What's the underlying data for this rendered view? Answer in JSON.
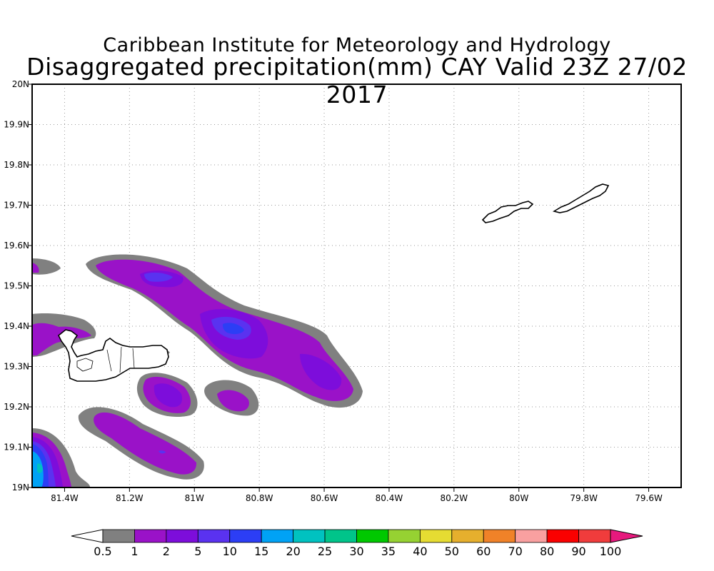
{
  "header": {
    "institute": "Caribbean Institute for Meteorology and Hydrology",
    "product": "Disaggregated precipitation(mm) CAY Valid 23Z 27/02 2017"
  },
  "map": {
    "lon_range": [
      -81.5,
      -79.5
    ],
    "lat_range": [
      19.0,
      20.0
    ],
    "lon_ticks": [
      {
        "value": -81.4,
        "label": "81.4W"
      },
      {
        "value": -81.2,
        "label": "81.2W"
      },
      {
        "value": -81.0,
        "label": "81W"
      },
      {
        "value": -80.8,
        "label": "80.8W"
      },
      {
        "value": -80.6,
        "label": "80.6W"
      },
      {
        "value": -80.4,
        "label": "80.4W"
      },
      {
        "value": -80.2,
        "label": "80.2W"
      },
      {
        "value": -80.0,
        "label": "80W"
      },
      {
        "value": -79.8,
        "label": "79.8W"
      },
      {
        "value": -79.6,
        "label": "79.6W"
      }
    ],
    "lat_ticks": [
      {
        "value": 19.0,
        "label": "19N"
      },
      {
        "value": 19.1,
        "label": "19.1N"
      },
      {
        "value": 19.2,
        "label": "19.2N"
      },
      {
        "value": 19.3,
        "label": "19.3N"
      },
      {
        "value": 19.4,
        "label": "19.4N"
      },
      {
        "value": 19.5,
        "label": "19.5N"
      },
      {
        "value": 19.6,
        "label": "19.6N"
      },
      {
        "value": 19.7,
        "label": "19.7N"
      },
      {
        "value": 19.8,
        "label": "19.8N"
      },
      {
        "value": 19.9,
        "label": "19.9N"
      },
      {
        "value": 20.0,
        "label": "20N"
      }
    ],
    "gridlines": true
  },
  "colorbar": {
    "labels": [
      "0.5",
      "1",
      "2",
      "5",
      "10",
      "15",
      "20",
      "25",
      "30",
      "35",
      "40",
      "50",
      "60",
      "70",
      "80",
      "90",
      "100"
    ],
    "colors": [
      "#808080",
      "#9a12c8",
      "#7d0ddb",
      "#5a32f0",
      "#2c3ef5",
      "#00a2f5",
      "#00c2c0",
      "#00c48a",
      "#00c800",
      "#96d232",
      "#e6dc32",
      "#e6af2d",
      "#f08228",
      "#f9a0a0",
      "#fa0000",
      "#f03c3c"
    ],
    "under_color": "#ffffff",
    "over_color": "#e6197d"
  }
}
